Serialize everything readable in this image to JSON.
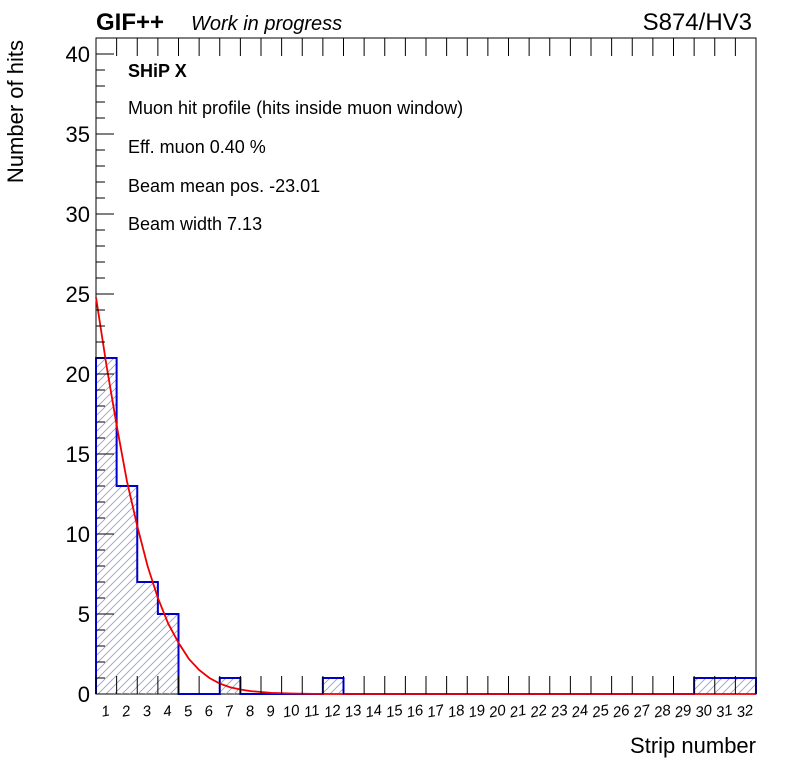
{
  "header": {
    "experiment": "GIF++",
    "status": "Work in progress",
    "run_label": "S874/HV3"
  },
  "info": {
    "title": "SHiP X",
    "lines": [
      "Muon hit profile (hits inside muon window)",
      "Eff. muon 0.40 %",
      "Beam mean pos. -23.01",
      "Beam width 7.13"
    ]
  },
  "colors": {
    "histogram": "#0000cc",
    "fit": "#ee0000",
    "hatch": "#9999cc"
  },
  "chart_data": {
    "type": "bar",
    "xlabel": "Strip number",
    "ylabel": "Number of hits",
    "categories": [
      "1",
      "2",
      "3",
      "4",
      "5",
      "6",
      "7",
      "8",
      "9",
      "10",
      "11",
      "12",
      "13",
      "14",
      "15",
      "16",
      "17",
      "18",
      "19",
      "20",
      "21",
      "22",
      "23",
      "24",
      "25",
      "26",
      "27",
      "28",
      "29",
      "30",
      "31",
      "32"
    ],
    "values": [
      21,
      13,
      7,
      5,
      0,
      0,
      1,
      0,
      0,
      0,
      0,
      1,
      0,
      0,
      0,
      0,
      0,
      0,
      0,
      0,
      0,
      0,
      0,
      0,
      0,
      0,
      0,
      0,
      0,
      1,
      1,
      1
    ],
    "ylim": [
      0,
      41
    ],
    "yticks": [
      0,
      5,
      10,
      15,
      20,
      25,
      30,
      35,
      40
    ],
    "fit": {
      "type": "exponential",
      "description": "red fit curve",
      "points": [
        [
          0.5,
          24.8
        ],
        [
          1,
          20.6
        ],
        [
          1.5,
          16.8
        ],
        [
          2,
          13.3
        ],
        [
          2.5,
          10.5
        ],
        [
          3,
          8.0
        ],
        [
          3.5,
          6.0
        ],
        [
          4,
          4.4
        ],
        [
          4.5,
          3.2
        ],
        [
          5,
          2.2
        ],
        [
          5.5,
          1.5
        ],
        [
          6,
          1.0
        ],
        [
          6.5,
          0.65
        ],
        [
          7,
          0.42
        ],
        [
          7.5,
          0.28
        ],
        [
          8,
          0.18
        ],
        [
          9,
          0.07
        ],
        [
          10,
          0.03
        ],
        [
          11,
          0.01
        ],
        [
          12,
          0
        ],
        [
          32.5,
          0
        ]
      ]
    }
  }
}
